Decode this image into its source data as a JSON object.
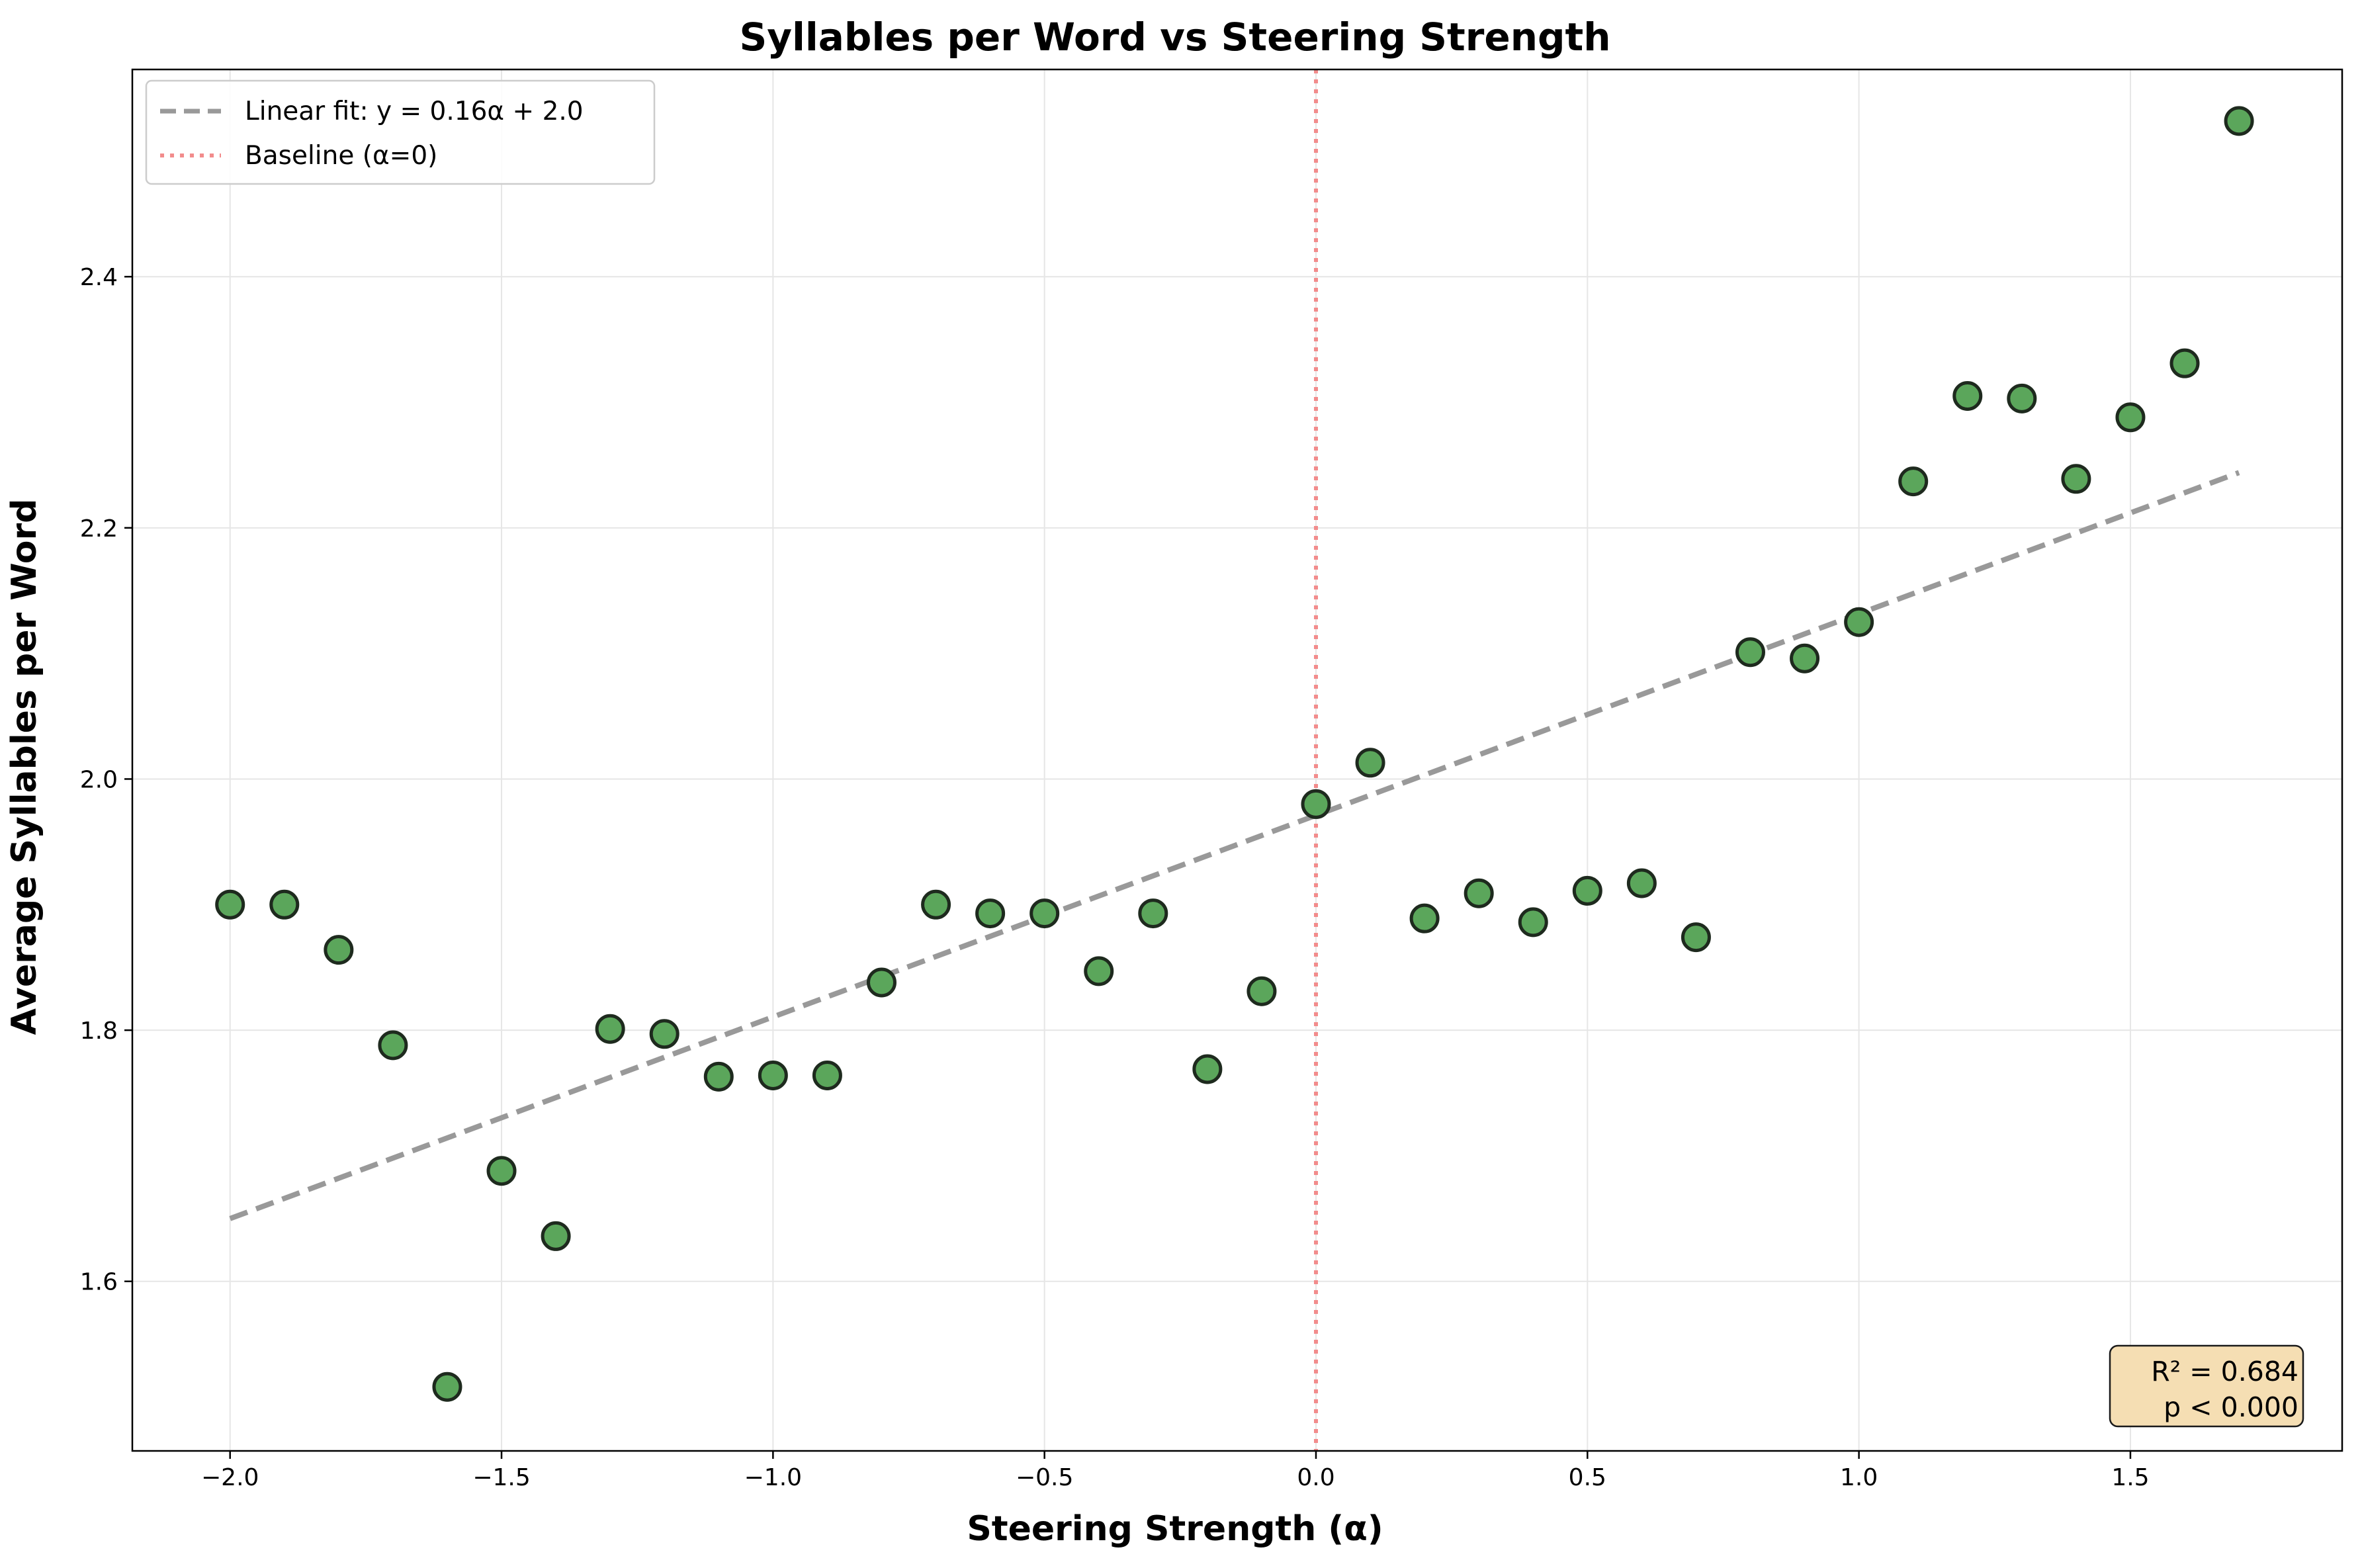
{
  "chart_data": {
    "type": "scatter",
    "title": "Syllables per Word vs Steering Strength",
    "xlabel": "Steering Strength (α)",
    "ylabel": "Average Syllables per Word",
    "xlim": [
      -2.18,
      1.89
    ],
    "ylim": [
      1.465,
      2.565
    ],
    "x_ticks": [
      -2.0,
      -1.5,
      -1.0,
      -0.5,
      0.0,
      0.5,
      1.0,
      1.5
    ],
    "x_tick_labels": [
      "−2.0",
      "−1.5",
      "−1.0",
      "−0.5",
      "0.0",
      "0.5",
      "1.0",
      "1.5"
    ],
    "y_ticks": [
      1.6,
      1.8,
      2.0,
      2.2,
      2.4
    ],
    "y_tick_labels": [
      "1.6",
      "1.8",
      "2.0",
      "2.2",
      "2.4"
    ],
    "grid": true,
    "legend_position": "top-left",
    "points": {
      "color": "#5ba65b",
      "edge_color": "#1e2a1e",
      "x": [
        -2.0,
        -1.9,
        -1.8,
        -1.7,
        -1.6,
        -1.5,
        -1.4,
        -1.3,
        -1.2,
        -1.1,
        -1.0,
        -0.9,
        -0.8,
        -0.7,
        -0.6,
        -0.5,
        -0.4,
        -0.3,
        -0.2,
        -0.1,
        0.0,
        0.1,
        0.2,
        0.3,
        0.4,
        0.5,
        0.6,
        0.7,
        0.8,
        0.9,
        1.0,
        1.1,
        1.2,
        1.3,
        1.4,
        1.5,
        1.6,
        1.7
      ],
      "y": [
        1.9,
        1.9,
        1.864,
        1.788,
        1.516,
        1.688,
        1.636,
        1.801,
        1.797,
        1.763,
        1.764,
        1.764,
        1.838,
        1.9,
        1.893,
        1.893,
        1.847,
        1.893,
        1.769,
        1.831,
        1.98,
        2.013,
        1.889,
        1.909,
        1.886,
        1.911,
        1.917,
        1.874,
        2.101,
        2.096,
        2.125,
        2.237,
        2.305,
        2.303,
        2.239,
        2.288,
        2.331,
        2.524
      ]
    },
    "fit_line": {
      "label": "Linear fit: y = 0.16α + 2.0",
      "color": "#999999",
      "x": [
        -2.0,
        1.7
      ],
      "y": [
        1.65,
        2.244
      ]
    },
    "baseline": {
      "label": "Baseline (α=0)",
      "color": "#f28c8c",
      "x": 0.0
    },
    "stats_box": {
      "line1": "R² = 0.684",
      "line2": "p < 0.000",
      "background": "#f5deb3"
    }
  }
}
